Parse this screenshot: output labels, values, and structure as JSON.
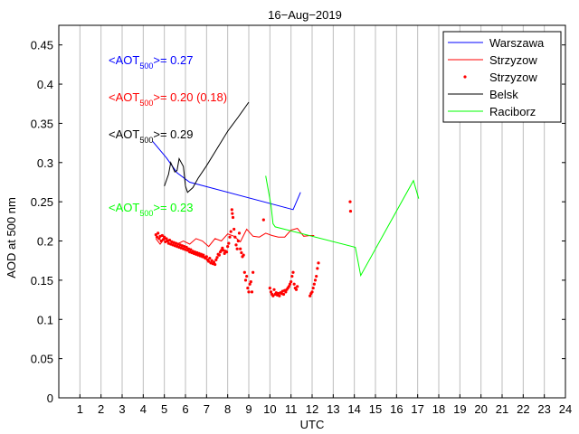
{
  "chart_data": {
    "type": "line",
    "title": "16−Aug−2019",
    "xlabel": "UTC",
    "ylabel": "AOD at 500 nm",
    "xlim": [
      0,
      24
    ],
    "ylim": [
      0,
      0.475
    ],
    "xticks": [
      1,
      2,
      3,
      4,
      5,
      6,
      7,
      8,
      9,
      10,
      11,
      12,
      13,
      14,
      15,
      16,
      17,
      18,
      19,
      20,
      21,
      22,
      23,
      24
    ],
    "xtick_labels": [
      "1",
      "2",
      "3",
      "4",
      "5",
      "6",
      "7",
      "8",
      "9",
      "10",
      "11",
      "12",
      "13",
      "14",
      "15",
      "16",
      "17",
      "18",
      "19",
      "20",
      "21",
      "22",
      "23",
      "24"
    ],
    "yticks": [
      0,
      0.05,
      0.1,
      0.15,
      0.2,
      0.25,
      0.3,
      0.35,
      0.4,
      0.45
    ],
    "ytick_labels": [
      "0",
      "0.05",
      "0.1",
      "0.15",
      "0.2",
      "0.25",
      "0.3",
      "0.35",
      "0.4",
      "0.45"
    ],
    "grid": "x-only",
    "legend_position": "top-right",
    "series": [
      {
        "name": "Warszawa",
        "style": "line",
        "color": "#0000ff",
        "x": [
          4.45,
          5.1,
          5.6,
          6.2,
          11.1,
          11.45
        ],
        "y": [
          0.327,
          0.306,
          0.287,
          0.275,
          0.24,
          0.262
        ]
      },
      {
        "name": "Strzyzow",
        "style": "line",
        "color": "#ff0000",
        "x": [
          4.6,
          4.8,
          5.0,
          5.3,
          5.6,
          5.9,
          6.2,
          6.5,
          6.8,
          7.1,
          7.4,
          7.7,
          8.0,
          8.3,
          8.6,
          8.9,
          9.2,
          9.5,
          9.8,
          10.1,
          10.4,
          10.7,
          11.0,
          11.3,
          11.6,
          11.9,
          12.1
        ],
        "y": [
          0.203,
          0.196,
          0.203,
          0.2,
          0.196,
          0.2,
          0.196,
          0.203,
          0.2,
          0.193,
          0.203,
          0.2,
          0.209,
          0.206,
          0.199,
          0.215,
          0.206,
          0.205,
          0.21,
          0.207,
          0.205,
          0.205,
          0.214,
          0.216,
          0.206,
          0.207,
          0.207
        ]
      },
      {
        "name": "Strzyzow",
        "style": "points",
        "color": "#ff0000",
        "x": [
          4.6,
          4.65,
          4.7,
          4.75,
          4.8,
          4.85,
          4.9,
          4.95,
          5.0,
          5.05,
          5.1,
          5.15,
          5.2,
          5.25,
          5.3,
          5.35,
          5.4,
          5.45,
          5.5,
          5.55,
          5.6,
          5.65,
          5.7,
          5.75,
          5.8,
          5.85,
          5.9,
          5.95,
          6.0,
          6.05,
          6.1,
          6.15,
          6.2,
          6.25,
          6.3,
          6.35,
          6.4,
          6.45,
          6.5,
          6.55,
          6.6,
          6.65,
          6.7,
          6.75,
          6.8,
          6.85,
          6.9,
          6.95,
          7.0,
          7.05,
          7.1,
          7.15,
          7.2,
          7.25,
          7.3,
          7.35,
          7.4,
          7.45,
          7.5,
          7.55,
          7.6,
          7.65,
          7.7,
          7.75,
          7.8,
          7.85,
          7.9,
          7.95,
          8.0,
          8.05,
          8.1,
          8.15,
          8.2,
          8.22,
          8.25,
          8.3,
          8.35,
          8.4,
          8.45,
          8.5,
          8.55,
          8.6,
          8.65,
          8.7,
          8.75,
          8.8,
          8.85,
          8.9,
          8.95,
          9.0,
          9.05,
          9.1,
          9.15,
          9.2,
          9.7,
          10.0,
          10.05,
          10.1,
          10.15,
          10.2,
          10.25,
          10.3,
          10.35,
          10.4,
          10.45,
          10.5,
          10.55,
          10.6,
          10.65,
          10.7,
          10.75,
          10.8,
          10.85,
          10.9,
          10.95,
          11.0,
          11.05,
          11.1,
          11.15,
          11.2,
          11.25,
          11.3,
          11.9,
          11.95,
          12.0,
          12.05,
          12.1,
          12.15,
          12.2,
          12.25,
          12.3,
          13.8,
          13.82
        ],
        "y": [
          0.208,
          0.205,
          0.21,
          0.203,
          0.206,
          0.2,
          0.207,
          0.202,
          0.205,
          0.199,
          0.203,
          0.2,
          0.197,
          0.201,
          0.196,
          0.199,
          0.195,
          0.198,
          0.194,
          0.197,
          0.193,
          0.196,
          0.192,
          0.195,
          0.191,
          0.194,
          0.19,
          0.193,
          0.189,
          0.192,
          0.188,
          0.19,
          0.186,
          0.189,
          0.185,
          0.187,
          0.184,
          0.186,
          0.183,
          0.185,
          0.182,
          0.184,
          0.181,
          0.183,
          0.18,
          0.182,
          0.179,
          0.178,
          0.18,
          0.176,
          0.174,
          0.178,
          0.172,
          0.175,
          0.171,
          0.173,
          0.17,
          0.176,
          0.179,
          0.183,
          0.182,
          0.186,
          0.188,
          0.191,
          0.188,
          0.184,
          0.187,
          0.186,
          0.193,
          0.197,
          0.205,
          0.212,
          0.24,
          0.235,
          0.23,
          0.215,
          0.205,
          0.195,
          0.19,
          0.2,
          0.21,
          0.19,
          0.185,
          0.18,
          0.182,
          0.16,
          0.15,
          0.155,
          0.14,
          0.135,
          0.145,
          0.148,
          0.135,
          0.16,
          0.227,
          0.14,
          0.135,
          0.132,
          0.13,
          0.138,
          0.132,
          0.134,
          0.131,
          0.133,
          0.13,
          0.134,
          0.133,
          0.136,
          0.132,
          0.137,
          0.135,
          0.138,
          0.14,
          0.142,
          0.145,
          0.148,
          0.155,
          0.16,
          0.145,
          0.14,
          0.138,
          0.142,
          0.13,
          0.133,
          0.135,
          0.14,
          0.145,
          0.15,
          0.155,
          0.165,
          0.172,
          0.25,
          0.238
        ]
      },
      {
        "name": "Belsk",
        "style": "line",
        "color": "#000000",
        "x": [
          5.0,
          5.2,
          5.3,
          5.5,
          5.6,
          5.7,
          5.9,
          6.0,
          6.1,
          6.35,
          6.6,
          7.0,
          7.5,
          8.0,
          8.5,
          9.0
        ],
        "y": [
          0.27,
          0.285,
          0.3,
          0.288,
          0.29,
          0.305,
          0.295,
          0.27,
          0.262,
          0.268,
          0.28,
          0.296,
          0.318,
          0.34,
          0.358,
          0.377
        ]
      },
      {
        "name": "Raciborz",
        "style": "line",
        "color": "#00ff00",
        "x": [
          9.8,
          10.05,
          10.15,
          10.25,
          14.05,
          14.3,
          16.8,
          17.05
        ],
        "y": [
          0.283,
          0.246,
          0.222,
          0.218,
          0.192,
          0.156,
          0.277,
          0.254
        ]
      }
    ],
    "annotations": [
      {
        "prefix": "<AOT",
        "sub": "500",
        "suffix": ">= 0.27",
        "color": "#0000ff"
      },
      {
        "prefix": "<AOT",
        "sub": "500",
        "suffix": ">= 0.20 (0.18)",
        "color": "#ff0000"
      },
      {
        "prefix": "<AOT",
        "sub": "500",
        "suffix": ">= 0.29",
        "color": "#000000"
      },
      {
        "prefix": "<AOT",
        "sub": "500",
        "suffix": ">= 0.23",
        "color": "#00ff00"
      }
    ]
  }
}
